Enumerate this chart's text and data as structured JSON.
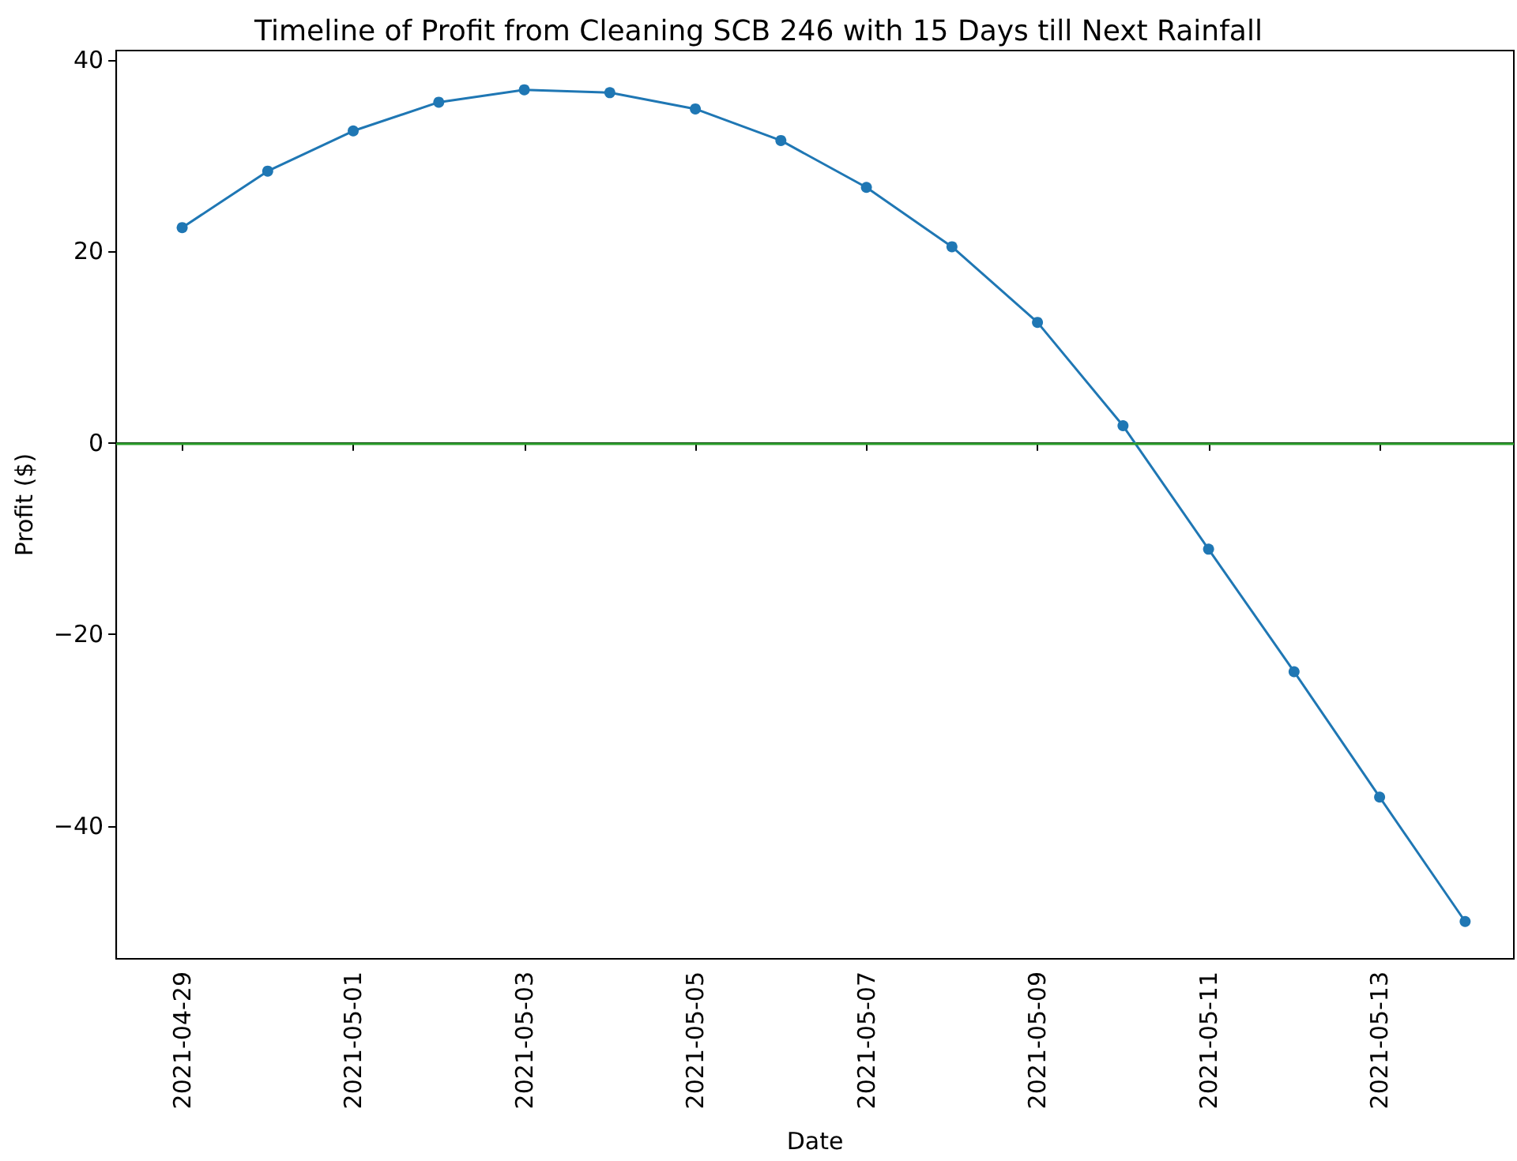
{
  "chart_data": {
    "type": "line",
    "title": "Timeline of Profit from Cleaning SCB 246 with 15 Days till Next Rainfall",
    "xlabel": "Date",
    "ylabel": "Profit ($)",
    "x": [
      "2021-04-29",
      "2021-04-30",
      "2021-05-01",
      "2021-05-02",
      "2021-05-03",
      "2021-05-04",
      "2021-05-05",
      "2021-05-06",
      "2021-05-07",
      "2021-05-08",
      "2021-05-09",
      "2021-05-10",
      "2021-05-11",
      "2021-05-12",
      "2021-05-13",
      "2021-05-14"
    ],
    "series": [
      {
        "color": "#1f77b4",
        "values": [
          22.5,
          28.4,
          32.6,
          35.6,
          36.9,
          36.6,
          34.9,
          31.6,
          26.7,
          20.5,
          12.6,
          1.8,
          -11.1,
          -23.9,
          -37.0,
          -50.0
        ]
      }
    ],
    "xlim": [
      "2021-04-28T05:30",
      "2021-05-14T13:40"
    ],
    "xticks": [
      "2021-04-29",
      "2021-05-01",
      "2021-05-03",
      "2021-05-05",
      "2021-05-07",
      "2021-05-09",
      "2021-05-11",
      "2021-05-13"
    ],
    "ylim": [
      -53.9,
      41
    ],
    "yticks": [
      {
        "value": -40,
        "label": "−40"
      },
      {
        "value": -20,
        "label": "−20"
      },
      0,
      20,
      40
    ],
    "ref_lines": [
      {
        "axis": "y",
        "value": 0,
        "color": "#2ca02c",
        "line_style": "solid"
      }
    ],
    "marker": "circle",
    "line_style": "solid",
    "grid": false
  }
}
